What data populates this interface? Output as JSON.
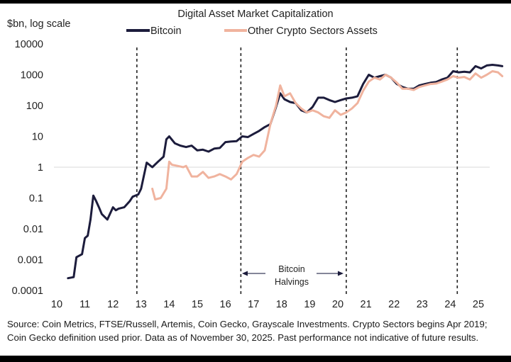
{
  "chart_data": {
    "type": "line",
    "title": "Digital Asset Market Capitalization",
    "ylabel": "$bn, log scale",
    "xlabel": "",
    "yscale": "log",
    "ylim": [
      0.0001,
      10000
    ],
    "xlim": [
      10,
      25.9
    ],
    "grid": "y=1 only",
    "legend_position": "top-center",
    "y_tick_labels": [
      "10000",
      "1000",
      "100",
      "10",
      "1",
      "0.1",
      "0.01",
      "0.001",
      "0.0001"
    ],
    "y_tick_values": [
      10000,
      1000,
      100,
      10,
      1,
      0.1,
      0.01,
      0.001,
      0.0001
    ],
    "x_tick_labels": [
      "10",
      "11",
      "12",
      "13",
      "14",
      "15",
      "16",
      "17",
      "18",
      "19",
      "20",
      "21",
      "22",
      "23",
      "24",
      "25"
    ],
    "x_tick_values": [
      10,
      11,
      12,
      13,
      14,
      15,
      16,
      17,
      18,
      19,
      20,
      21,
      22,
      23,
      24,
      25
    ],
    "series": [
      {
        "name": "Bitcoin",
        "color": "#1c1c3c",
        "x": [
          10.4,
          10.6,
          10.7,
          10.9,
          11.0,
          11.1,
          11.2,
          11.3,
          11.4,
          11.5,
          11.6,
          11.8,
          12.0,
          12.1,
          12.2,
          12.4,
          12.6,
          12.7,
          12.9,
          13.0,
          13.2,
          13.4,
          13.6,
          13.8,
          13.9,
          14.0,
          14.2,
          14.4,
          14.6,
          14.8,
          15.0,
          15.2,
          15.4,
          15.6,
          15.8,
          16.0,
          16.2,
          16.4,
          16.6,
          16.8,
          17.0,
          17.2,
          17.4,
          17.6,
          17.8,
          17.95,
          18.1,
          18.3,
          18.5,
          18.7,
          18.9,
          19.1,
          19.3,
          19.5,
          19.7,
          19.9,
          20.1,
          20.3,
          20.5,
          20.7,
          20.9,
          21.1,
          21.3,
          21.5,
          21.7,
          21.9,
          22.1,
          22.3,
          22.5,
          22.7,
          22.9,
          23.1,
          23.3,
          23.5,
          23.7,
          23.9,
          24.1,
          24.3,
          24.5,
          24.7,
          24.9,
          25.1,
          25.3,
          25.5,
          25.7,
          25.85
        ],
        "values": [
          0.00025,
          0.00027,
          0.0012,
          0.0015,
          0.005,
          0.006,
          0.02,
          0.12,
          0.08,
          0.05,
          0.03,
          0.02,
          0.05,
          0.04,
          0.045,
          0.05,
          0.08,
          0.11,
          0.13,
          0.2,
          1.4,
          1.0,
          1.5,
          2.2,
          8.0,
          10.0,
          6.0,
          5.0,
          4.5,
          5.0,
          3.5,
          3.7,
          3.2,
          4.0,
          4.2,
          6.5,
          6.8,
          7.0,
          10.0,
          9.5,
          12.0,
          15.0,
          20.0,
          25.0,
          90.0,
          250.0,
          160.0,
          130.0,
          120.0,
          70.0,
          60.0,
          90.0,
          180.0,
          180.0,
          150.0,
          130.0,
          150.0,
          170.0,
          180.0,
          200.0,
          500.0,
          1000.0,
          800.0,
          900.0,
          1000.0,
          800.0,
          500.0,
          400.0,
          350.0,
          350.0,
          450.0,
          500.0,
          550.0,
          580.0,
          700.0,
          800.0,
          1300.0,
          1200.0,
          1250.0,
          1200.0,
          1900.0,
          1600.0,
          2000.0,
          2100.0,
          2000.0,
          1900.0
        ]
      },
      {
        "name": "Other Crypto Sectors Assets",
        "color": "#f0b39e",
        "x": [
          13.4,
          13.5,
          13.7,
          13.9,
          14.0,
          14.1,
          14.3,
          14.5,
          14.6,
          14.8,
          15.0,
          15.2,
          15.4,
          15.6,
          15.8,
          16.0,
          16.2,
          16.4,
          16.6,
          16.8,
          17.0,
          17.2,
          17.4,
          17.6,
          17.8,
          17.95,
          18.1,
          18.3,
          18.5,
          18.7,
          18.9,
          19.1,
          19.3,
          19.5,
          19.7,
          19.9,
          20.1,
          20.3,
          20.5,
          20.7,
          20.9,
          21.1,
          21.3,
          21.5,
          21.7,
          21.9,
          22.1,
          22.3,
          22.5,
          22.7,
          22.9,
          23.1,
          23.3,
          23.5,
          23.7,
          23.9,
          24.1,
          24.3,
          24.5,
          24.7,
          24.9,
          25.1,
          25.3,
          25.5,
          25.7,
          25.85
        ],
        "values": [
          0.2,
          0.09,
          0.1,
          0.2,
          1.5,
          1.2,
          1.1,
          1.0,
          1.1,
          0.5,
          0.5,
          0.7,
          0.45,
          0.5,
          0.6,
          0.5,
          0.4,
          0.6,
          1.5,
          2.0,
          2.5,
          2.2,
          3.5,
          25.0,
          100.0,
          450.0,
          200.0,
          250.0,
          120.0,
          80.0,
          60.0,
          70.0,
          60.0,
          45.0,
          40.0,
          70.0,
          50.0,
          60.0,
          80.0,
          120.0,
          300.0,
          600.0,
          800.0,
          700.0,
          1000.0,
          800.0,
          550.0,
          350.0,
          350.0,
          320.0,
          400.0,
          450.0,
          500.0,
          520.0,
          600.0,
          700.0,
          900.0,
          800.0,
          850.0,
          700.0,
          1100.0,
          800.0,
          1000.0,
          1300.0,
          1200.0,
          900.0
        ]
      }
    ],
    "halving_lines": [
      12.85,
      16.55,
      20.3,
      24.25
    ],
    "annotation": {
      "line1": "Bitcoin",
      "line2": "Halvings"
    }
  },
  "footnote": "Source: Coin Metrics, FTSE/Russell, Artemis, Coin Gecko, Grayscale Investments. Crypto Sectors begins Apr 2019; Coin Gecko definition used prior. Data as of November 30, 2025. Past performance not indicative of future results."
}
